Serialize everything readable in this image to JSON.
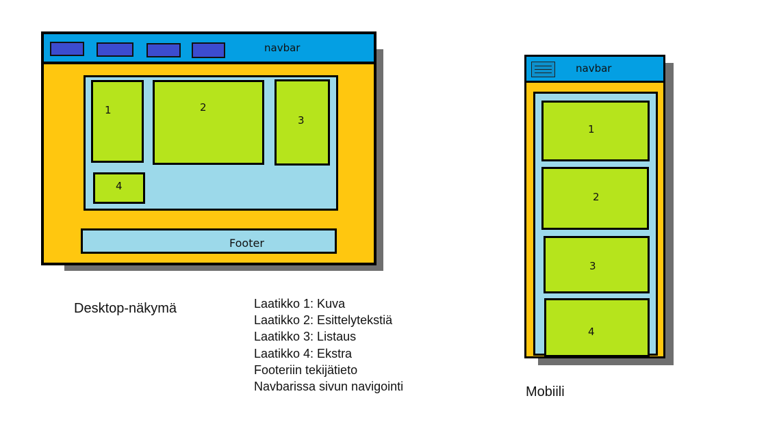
{
  "desktop": {
    "navbar_label": "navbar",
    "boxes": [
      "1",
      "2",
      "3",
      "4"
    ],
    "footer_label": "Footer",
    "caption": "Desktop-näkymä"
  },
  "legend": {
    "lines": [
      "Laatikko 1: Kuva",
      "Laatikko 2: Esittelytekstiä",
      "Laatikko 3: Listaus",
      "Laatikko 4: Ekstra",
      "Footeriin tekijätieto",
      "Navbarissa sivun navigointi"
    ]
  },
  "mobile": {
    "navbar_label": "navbar",
    "hamburger_icon": "hamburger-menu-icon",
    "boxes": [
      "1",
      "2",
      "3",
      "4"
    ],
    "caption": "Mobiili"
  },
  "colors": {
    "frame": "#ffc70f",
    "navbar": "#049fe3",
    "nav_button": "#3c4ccf",
    "container": "#9cd9ea",
    "box": "#b6e41c",
    "shadow": "#6f6f6f"
  }
}
